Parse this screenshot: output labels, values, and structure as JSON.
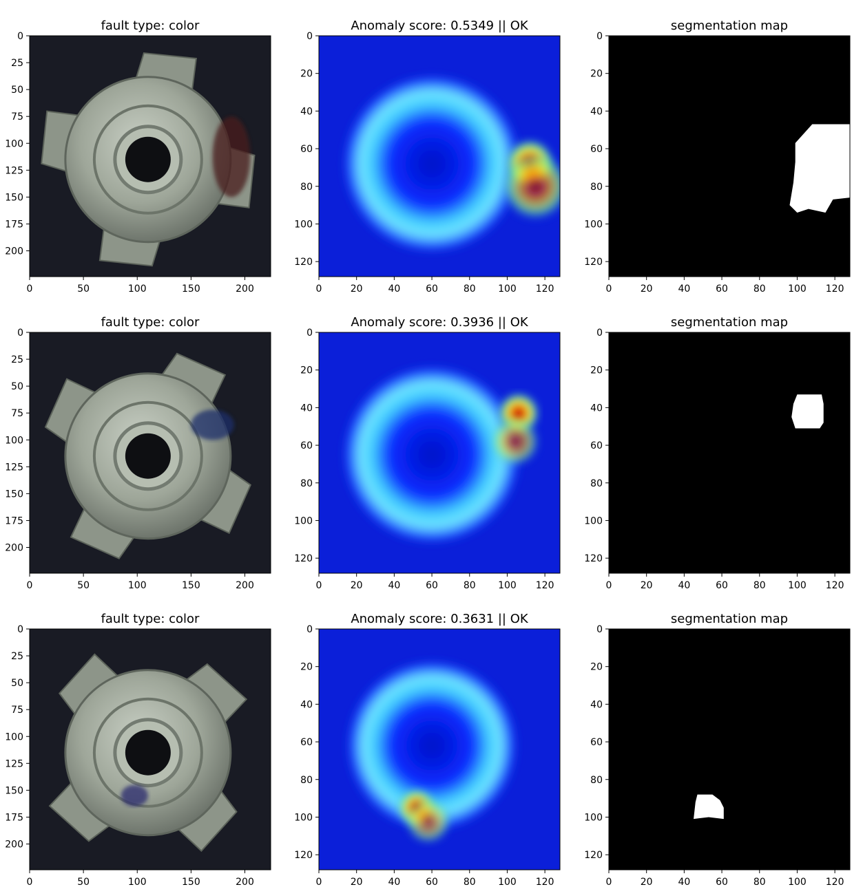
{
  "figure": {
    "layout": "3x3 grid of image panels",
    "colormap": "jet",
    "colors": {
      "background": "#ffffff",
      "photo_background": "#191b24",
      "nut_metal": "#a9b1a6",
      "mask_fg": "#ffffff",
      "mask_bg": "#000000"
    }
  },
  "chart_data": [
    {
      "type": "image",
      "row": 0,
      "col": 0,
      "title": "fault type: color",
      "xlim": [
        0,
        224
      ],
      "ylim": [
        224,
        0
      ],
      "xticks": [
        0,
        50,
        100,
        150,
        200
      ],
      "yticks": [
        0,
        25,
        50,
        75,
        100,
        125,
        150,
        175,
        200
      ],
      "content": "photo of metal tee nut",
      "defect": {
        "color": "#4a1d1d",
        "x": [
          170,
          205
        ],
        "y": [
          75,
          150
        ]
      }
    },
    {
      "type": "heatmap",
      "row": 0,
      "col": 1,
      "title": "Anomaly score: 0.5349 || OK",
      "xlim": [
        0,
        128
      ],
      "ylim": [
        128,
        0
      ],
      "xticks": [
        0,
        20,
        40,
        60,
        80,
        100,
        120
      ],
      "yticks": [
        0,
        20,
        40,
        60,
        80,
        100,
        120
      ],
      "hotspots": [
        {
          "x": 60,
          "y": 68,
          "v": 0.25,
          "r": 48
        },
        {
          "x": 112,
          "y": 68,
          "v": 1.0,
          "r": 13
        },
        {
          "x": 115,
          "y": 80,
          "v": 0.7,
          "r": 18
        }
      ]
    },
    {
      "type": "mask",
      "row": 0,
      "col": 2,
      "title": "segmentation map",
      "xlim": [
        0,
        128
      ],
      "ylim": [
        128,
        0
      ],
      "xticks": [
        0,
        20,
        40,
        60,
        80,
        100,
        120
      ],
      "yticks": [
        0,
        20,
        40,
        60,
        80,
        100,
        120
      ],
      "polygon": [
        [
          99,
          57
        ],
        [
          108,
          47
        ],
        [
          128,
          47
        ],
        [
          128,
          86
        ],
        [
          119,
          87
        ],
        [
          115,
          94
        ],
        [
          106,
          92
        ],
        [
          100,
          94
        ],
        [
          96,
          90
        ],
        [
          98,
          78
        ],
        [
          99,
          67
        ]
      ]
    },
    {
      "type": "image",
      "row": 1,
      "col": 0,
      "title": "fault type: color",
      "xlim": [
        0,
        224
      ],
      "ylim": [
        224,
        0
      ],
      "xticks": [
        0,
        50,
        100,
        150,
        200
      ],
      "yticks": [
        0,
        25,
        50,
        75,
        100,
        125,
        150,
        175,
        200
      ],
      "content": "photo of metal tee nut",
      "defect": {
        "color": "#1d2f6a",
        "x": [
          150,
          190
        ],
        "y": [
          72,
          100
        ]
      }
    },
    {
      "type": "heatmap",
      "row": 1,
      "col": 1,
      "title": "Anomaly score: 0.3936 || OK",
      "xlim": [
        0,
        128
      ],
      "ylim": [
        128,
        0
      ],
      "xticks": [
        0,
        20,
        40,
        60,
        80,
        100,
        120
      ],
      "yticks": [
        0,
        20,
        40,
        60,
        80,
        100,
        120
      ],
      "hotspots": [
        {
          "x": 60,
          "y": 65,
          "v": 0.3,
          "r": 48
        },
        {
          "x": 106,
          "y": 43,
          "v": 1.0,
          "r": 11
        },
        {
          "x": 104,
          "y": 58,
          "v": 0.65,
          "r": 13
        }
      ]
    },
    {
      "type": "mask",
      "row": 1,
      "col": 2,
      "title": "segmentation map",
      "xlim": [
        0,
        128
      ],
      "ylim": [
        128,
        0
      ],
      "xticks": [
        0,
        20,
        40,
        60,
        80,
        100,
        120
      ],
      "yticks": [
        0,
        20,
        40,
        60,
        80,
        100,
        120
      ],
      "polygon": [
        [
          100,
          33
        ],
        [
          113,
          33
        ],
        [
          114,
          38
        ],
        [
          114,
          48
        ],
        [
          112,
          51
        ],
        [
          99,
          51
        ],
        [
          97,
          45
        ],
        [
          98,
          38
        ]
      ]
    },
    {
      "type": "image",
      "row": 2,
      "col": 0,
      "title": "fault type: color",
      "xlim": [
        0,
        224
      ],
      "ylim": [
        224,
        0
      ],
      "xticks": [
        0,
        50,
        100,
        150,
        200
      ],
      "yticks": [
        0,
        25,
        50,
        75,
        100,
        125,
        150,
        175,
        200
      ],
      "content": "photo of metal tee nut",
      "defect": {
        "color": "#2a2c6e",
        "x": [
          85,
          110
        ],
        "y": [
          145,
          165
        ]
      }
    },
    {
      "type": "heatmap",
      "row": 2,
      "col": 1,
      "title": "Anomaly score: 0.3631 || OK",
      "xlim": [
        0,
        128
      ],
      "ylim": [
        128,
        0
      ],
      "xticks": [
        0,
        20,
        40,
        60,
        80,
        100,
        120
      ],
      "yticks": [
        0,
        20,
        40,
        60,
        80,
        100,
        120
      ],
      "hotspots": [
        {
          "x": 60,
          "y": 62,
          "v": 0.3,
          "r": 46
        },
        {
          "x": 52,
          "y": 95,
          "v": 1.0,
          "r": 10
        },
        {
          "x": 58,
          "y": 102,
          "v": 0.65,
          "r": 12
        }
      ]
    },
    {
      "type": "mask",
      "row": 2,
      "col": 2,
      "title": "segmentation map",
      "xlim": [
        0,
        128
      ],
      "ylim": [
        128,
        0
      ],
      "xticks": [
        0,
        20,
        40,
        60,
        80,
        100,
        120
      ],
      "yticks": [
        0,
        20,
        40,
        60,
        80,
        100,
        120
      ],
      "polygon": [
        [
          47,
          88
        ],
        [
          55,
          88
        ],
        [
          59,
          91
        ],
        [
          61,
          95
        ],
        [
          61,
          101
        ],
        [
          53,
          100
        ],
        [
          45,
          101
        ],
        [
          46,
          92
        ]
      ]
    }
  ]
}
